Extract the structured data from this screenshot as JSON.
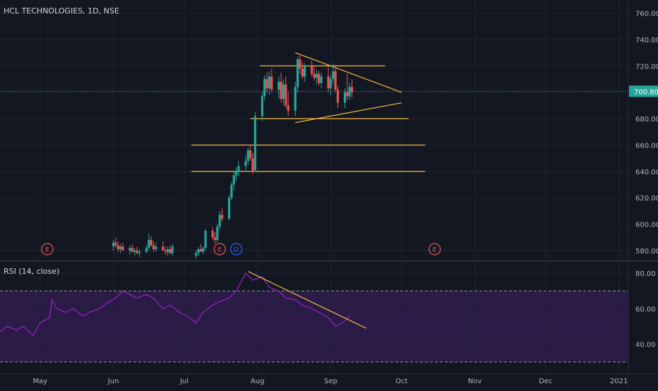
{
  "chart_title": "HCL TECHNOLOGIES, 1D, NSE",
  "rsi_title": "RSI (14, close)",
  "last_price_label": "700.80",
  "colors": {
    "background": "#131722",
    "grid": "#1f2433",
    "axis_text": "#b2b5be",
    "up": "#26a69a",
    "down": "#ef5350",
    "trendline": "#f5b942",
    "rsi_line": "#a020c8",
    "rsi_band": "#2a1b47",
    "price_label_bg": "#26a69a",
    "event_earnings": "#ef5350",
    "event_dividend": "#2962ff"
  },
  "chart_data": [
    {
      "type": "candlestick",
      "title": "HCL TECHNOLOGIES, 1D, NSE",
      "x_axis": {
        "type": "date",
        "start": "2020-04-14",
        "end": "2021-01-05"
      },
      "y_axis": {
        "ticks": [
          "760.00",
          "740.00",
          "720.00",
          "700.00",
          "680.00",
          "660.00",
          "640.00",
          "620.00",
          "600.00",
          "580.00"
        ],
        "ylim": [
          573,
          770
        ]
      },
      "last_price": 700.8,
      "candles": [
        [
          "2020-06-01",
          583,
          588,
          580,
          586
        ],
        [
          "2020-06-02",
          586,
          590,
          582,
          584
        ],
        [
          "2020-06-03",
          584,
          587,
          579,
          581
        ],
        [
          "2020-06-04",
          581,
          585,
          578,
          583
        ],
        [
          "2020-06-05",
          583,
          586,
          580,
          580
        ],
        [
          "2020-06-08",
          580,
          584,
          577,
          582
        ],
        [
          "2020-06-09",
          582,
          585,
          579,
          579
        ],
        [
          "2020-06-10",
          579,
          582,
          576,
          580
        ],
        [
          "2020-06-11",
          580,
          583,
          577,
          578
        ],
        [
          "2020-06-12",
          578,
          581,
          575,
          579
        ],
        [
          "2020-06-15",
          579,
          584,
          578,
          582
        ],
        [
          "2020-06-16",
          582,
          593,
          580,
          588
        ],
        [
          "2020-06-17",
          588,
          591,
          583,
          584
        ],
        [
          "2020-06-18",
          584,
          587,
          579,
          581
        ],
        [
          "2020-06-19",
          581,
          586,
          579,
          583
        ],
        [
          "2020-06-22",
          583,
          587,
          580,
          580
        ],
        [
          "2020-06-23",
          580,
          583,
          577,
          579
        ],
        [
          "2020-06-24",
          579,
          583,
          576,
          581
        ],
        [
          "2020-06-25",
          581,
          584,
          577,
          578
        ],
        [
          "2020-06-26",
          578,
          585,
          576,
          583
        ],
        [
          "2020-07-06",
          576,
          580,
          574,
          578
        ],
        [
          "2020-07-07",
          578,
          583,
          576,
          581
        ],
        [
          "2020-07-08",
          581,
          585,
          579,
          579
        ],
        [
          "2020-07-09",
          579,
          583,
          577,
          582
        ],
        [
          "2020-07-10",
          582,
          596,
          580,
          595
        ],
        [
          "2020-07-13",
          595,
          598,
          588,
          590
        ],
        [
          "2020-07-14",
          590,
          594,
          585,
          588
        ],
        [
          "2020-07-15",
          588,
          600,
          586,
          598
        ],
        [
          "2020-07-16",
          598,
          610,
          596,
          607
        ],
        [
          "2020-07-17",
          607,
          612,
          602,
          604
        ],
        [
          "2020-07-20",
          604,
          622,
          603,
          620
        ],
        [
          "2020-07-21",
          620,
          632,
          618,
          630
        ],
        [
          "2020-07-22",
          630,
          640,
          626,
          637
        ],
        [
          "2020-07-23",
          637,
          643,
          633,
          640
        ],
        [
          "2020-07-24",
          640,
          648,
          636,
          644
        ],
        [
          "2020-07-27",
          644,
          652,
          640,
          648
        ],
        [
          "2020-07-28",
          648,
          658,
          645,
          656
        ],
        [
          "2020-07-29",
          656,
          660,
          648,
          650
        ],
        [
          "2020-07-30",
          650,
          654,
          638,
          640
        ],
        [
          "2020-07-31",
          641,
          685,
          640,
          682
        ],
        [
          "2020-08-03",
          682,
          700,
          678,
          697
        ],
        [
          "2020-08-04",
          697,
          713,
          694,
          710
        ],
        [
          "2020-08-05",
          710,
          715,
          700,
          703
        ],
        [
          "2020-08-06",
          703,
          716,
          698,
          712
        ],
        [
          "2020-08-07",
          712,
          718,
          700,
          702
        ],
        [
          "2020-08-10",
          702,
          712,
          695,
          708
        ],
        [
          "2020-08-11",
          708,
          715,
          692,
          695
        ],
        [
          "2020-08-12",
          695,
          710,
          690,
          706
        ],
        [
          "2020-08-13",
          706,
          712,
          688,
          690
        ],
        [
          "2020-08-14",
          690,
          700,
          682,
          686
        ],
        [
          "2020-08-17",
          686,
          708,
          682,
          704
        ],
        [
          "2020-08-18",
          704,
          727,
          700,
          725
        ],
        [
          "2020-08-19",
          725,
          729,
          714,
          718
        ],
        [
          "2020-08-20",
          718,
          723,
          710,
          712
        ],
        [
          "2020-08-21",
          712,
          722,
          708,
          720
        ],
        [
          "2020-08-24",
          720,
          724,
          712,
          714
        ],
        [
          "2020-08-25",
          714,
          720,
          709,
          711
        ],
        [
          "2020-08-26",
          711,
          717,
          706,
          714
        ],
        [
          "2020-08-27",
          714,
          716,
          705,
          707
        ],
        [
          "2020-08-28",
          707,
          715,
          703,
          712
        ],
        [
          "2020-08-31",
          712,
          720,
          700,
          703
        ],
        [
          "2020-09-01",
          703,
          713,
          698,
          710
        ],
        [
          "2020-09-02",
          710,
          722,
          706,
          716
        ],
        [
          "2020-09-03",
          716,
          721,
          700,
          702
        ],
        [
          "2020-09-04",
          702,
          705,
          688,
          692
        ],
        [
          "2020-09-07",
          692,
          703,
          688,
          700
        ],
        [
          "2020-09-08",
          700,
          714,
          694,
          697
        ],
        [
          "2020-09-09",
          697,
          707,
          694,
          704
        ],
        [
          "2020-09-10",
          704,
          710,
          696,
          700
        ]
      ],
      "trendlines": [
        {
          "from": [
            "2020-08-02",
            720
          ],
          "to": [
            "2020-09-24",
            720
          ]
        },
        {
          "from": [
            "2020-07-29",
            680
          ],
          "to": [
            "2020-10-04",
            680
          ]
        },
        {
          "from": [
            "2020-07-04",
            660
          ],
          "to": [
            "2020-10-11",
            660
          ]
        },
        {
          "from": [
            "2020-07-04",
            640
          ],
          "to": [
            "2020-10-11",
            640
          ]
        },
        {
          "from": [
            "2020-08-17",
            730
          ],
          "to": [
            "2020-10-01",
            700
          ]
        },
        {
          "from": [
            "2020-08-17",
            677
          ],
          "to": [
            "2020-10-01",
            692
          ]
        }
      ],
      "events": [
        {
          "date": "2020-05-04",
          "label": "E",
          "kind": "earnings"
        },
        {
          "date": "2020-07-16",
          "label": "E",
          "kind": "earnings"
        },
        {
          "date": "2020-07-23",
          "label": "D",
          "kind": "dividend"
        },
        {
          "date": "2020-10-15",
          "label": "E",
          "kind": "earnings"
        }
      ]
    },
    {
      "type": "line",
      "title": "RSI (14, close)",
      "y_axis": {
        "ticks": [
          "80.00",
          "60.00",
          "40.00"
        ],
        "ylim": [
          24,
          86
        ]
      },
      "bands": {
        "upper": 70,
        "lower": 30
      },
      "series": [
        {
          "name": "RSI",
          "points": [
            [
              "2020-04-14",
              47
            ],
            [
              "2020-04-17",
              50
            ],
            [
              "2020-04-21",
              48
            ],
            [
              "2020-04-24",
              50
            ],
            [
              "2020-04-28",
              45
            ],
            [
              "2020-05-01",
              52
            ],
            [
              "2020-05-05",
              55
            ],
            [
              "2020-05-06",
              65
            ],
            [
              "2020-05-08",
              60
            ],
            [
              "2020-05-12",
              58
            ],
            [
              "2020-05-15",
              60
            ],
            [
              "2020-05-19",
              56
            ],
            [
              "2020-05-22",
              58
            ],
            [
              "2020-05-26",
              60
            ],
            [
              "2020-05-29",
              63
            ],
            [
              "2020-06-02",
              66
            ],
            [
              "2020-06-05",
              70
            ],
            [
              "2020-06-08",
              68
            ],
            [
              "2020-06-11",
              66
            ],
            [
              "2020-06-15",
              68
            ],
            [
              "2020-06-18",
              66
            ],
            [
              "2020-06-22",
              60
            ],
            [
              "2020-06-25",
              62
            ],
            [
              "2020-06-29",
              58
            ],
            [
              "2020-07-02",
              56
            ],
            [
              "2020-07-06",
              52
            ],
            [
              "2020-07-09",
              58
            ],
            [
              "2020-07-13",
              62
            ],
            [
              "2020-07-16",
              64
            ],
            [
              "2020-07-20",
              66
            ],
            [
              "2020-07-23",
              70
            ],
            [
              "2020-07-27",
              80
            ],
            [
              "2020-07-30",
              76
            ],
            [
              "2020-08-03",
              78
            ],
            [
              "2020-08-06",
              72
            ],
            [
              "2020-08-10",
              70
            ],
            [
              "2020-08-13",
              66
            ],
            [
              "2020-08-17",
              65
            ],
            [
              "2020-08-20",
              62
            ],
            [
              "2020-08-24",
              60
            ],
            [
              "2020-08-27",
              58
            ],
            [
              "2020-08-31",
              55
            ],
            [
              "2020-09-03",
              50
            ],
            [
              "2020-09-07",
              53
            ],
            [
              "2020-09-09",
              56
            ]
          ]
        }
      ],
      "trendlines": [
        {
          "from": [
            "2020-07-28",
            81
          ],
          "to": [
            "2020-09-16",
            49
          ]
        }
      ]
    }
  ],
  "x_axis_labels": [
    {
      "date": "2020-05-01",
      "label": "May"
    },
    {
      "date": "2020-06-01",
      "label": "Jun"
    },
    {
      "date": "2020-07-01",
      "label": "Jul"
    },
    {
      "date": "2020-08-01",
      "label": "Aug"
    },
    {
      "date": "2020-09-01",
      "label": "Sep"
    },
    {
      "date": "2020-10-01",
      "label": "Oct"
    },
    {
      "date": "2020-11-01",
      "label": "Nov"
    },
    {
      "date": "2020-12-01",
      "label": "Dec"
    },
    {
      "date": "2021-01-01",
      "label": "2021"
    }
  ]
}
